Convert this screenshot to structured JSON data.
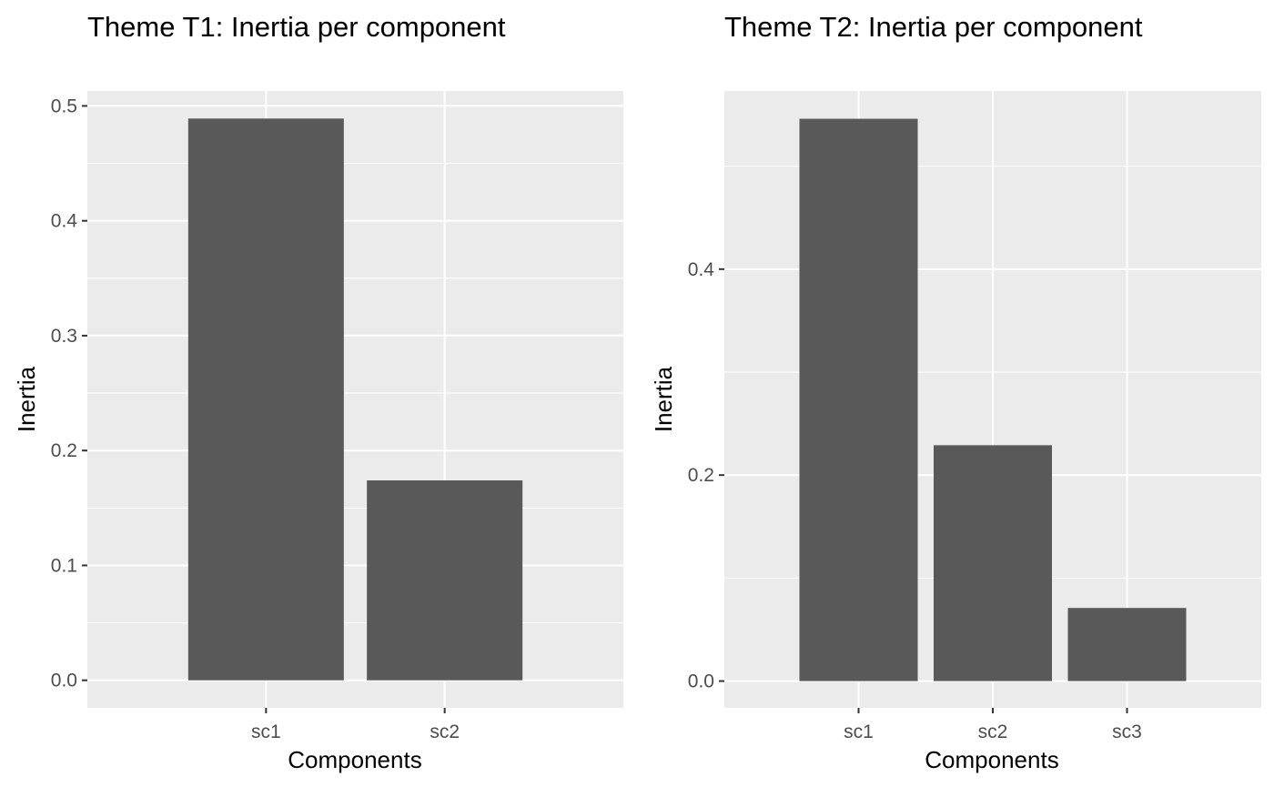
{
  "colors": {
    "panel_background": "#ebebeb",
    "grid_line": "#ffffff",
    "bar_fill": "#595959",
    "tick_label": "#4d4d4d",
    "tick_mark": "#333333"
  },
  "chart_data": [
    {
      "type": "bar",
      "title": "Theme T1: Inertia per component",
      "xlabel": "Components",
      "ylabel": "Inertia",
      "categories": [
        "sc1",
        "sc2"
      ],
      "values": [
        0.489,
        0.174
      ],
      "ylim": [
        -0.024,
        0.513
      ],
      "yticks": [
        0.0,
        0.1,
        0.2,
        0.3,
        0.4,
        0.5
      ],
      "ytick_labels": [
        "0.0",
        "0.1",
        "0.2",
        "0.3",
        "0.4",
        "0.5"
      ],
      "grid": true,
      "legend": "none"
    },
    {
      "type": "bar",
      "title": "Theme T2: Inertia per component",
      "xlabel": "Components",
      "ylabel": "Inertia",
      "categories": [
        "sc1",
        "sc2",
        "sc3"
      ],
      "values": [
        0.546,
        0.229,
        0.071
      ],
      "ylim": [
        -0.026,
        0.573
      ],
      "yticks": [
        0.0,
        0.2,
        0.4
      ],
      "ytick_labels": [
        "0.0",
        "0.2",
        "0.4"
      ],
      "grid": true,
      "legend": "none"
    }
  ]
}
